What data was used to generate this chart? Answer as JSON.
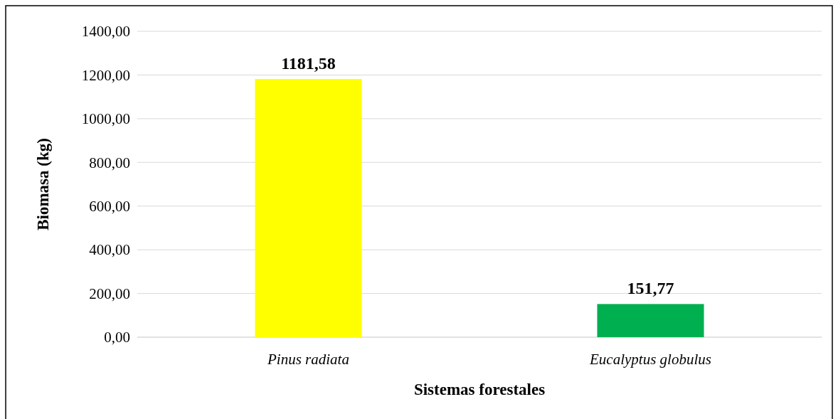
{
  "chart_data": {
    "type": "bar",
    "xlabel": "Sistemas forestales",
    "ylabel": "Biomasa (kg)",
    "categories": [
      "Pinus radiata",
      "Eucalyptus globulus"
    ],
    "values": [
      1181.58,
      151.77
    ],
    "colors": [
      "#ffff00",
      "#00b050"
    ],
    "value_labels": [
      "1181,58",
      "151,77"
    ],
    "ylim": [
      0,
      1400
    ],
    "yticks": [
      {
        "value": 0,
        "label": "0,00"
      },
      {
        "value": 200,
        "label": "200,00"
      },
      {
        "value": 400,
        "label": "400,00"
      },
      {
        "value": 600,
        "label": "600,00"
      },
      {
        "value": 800,
        "label": "800,00"
      },
      {
        "value": 1000,
        "label": "1000,00"
      },
      {
        "value": 1200,
        "label": "1200,00"
      },
      {
        "value": 1400,
        "label": "1400,00"
      }
    ],
    "grid": "y"
  }
}
